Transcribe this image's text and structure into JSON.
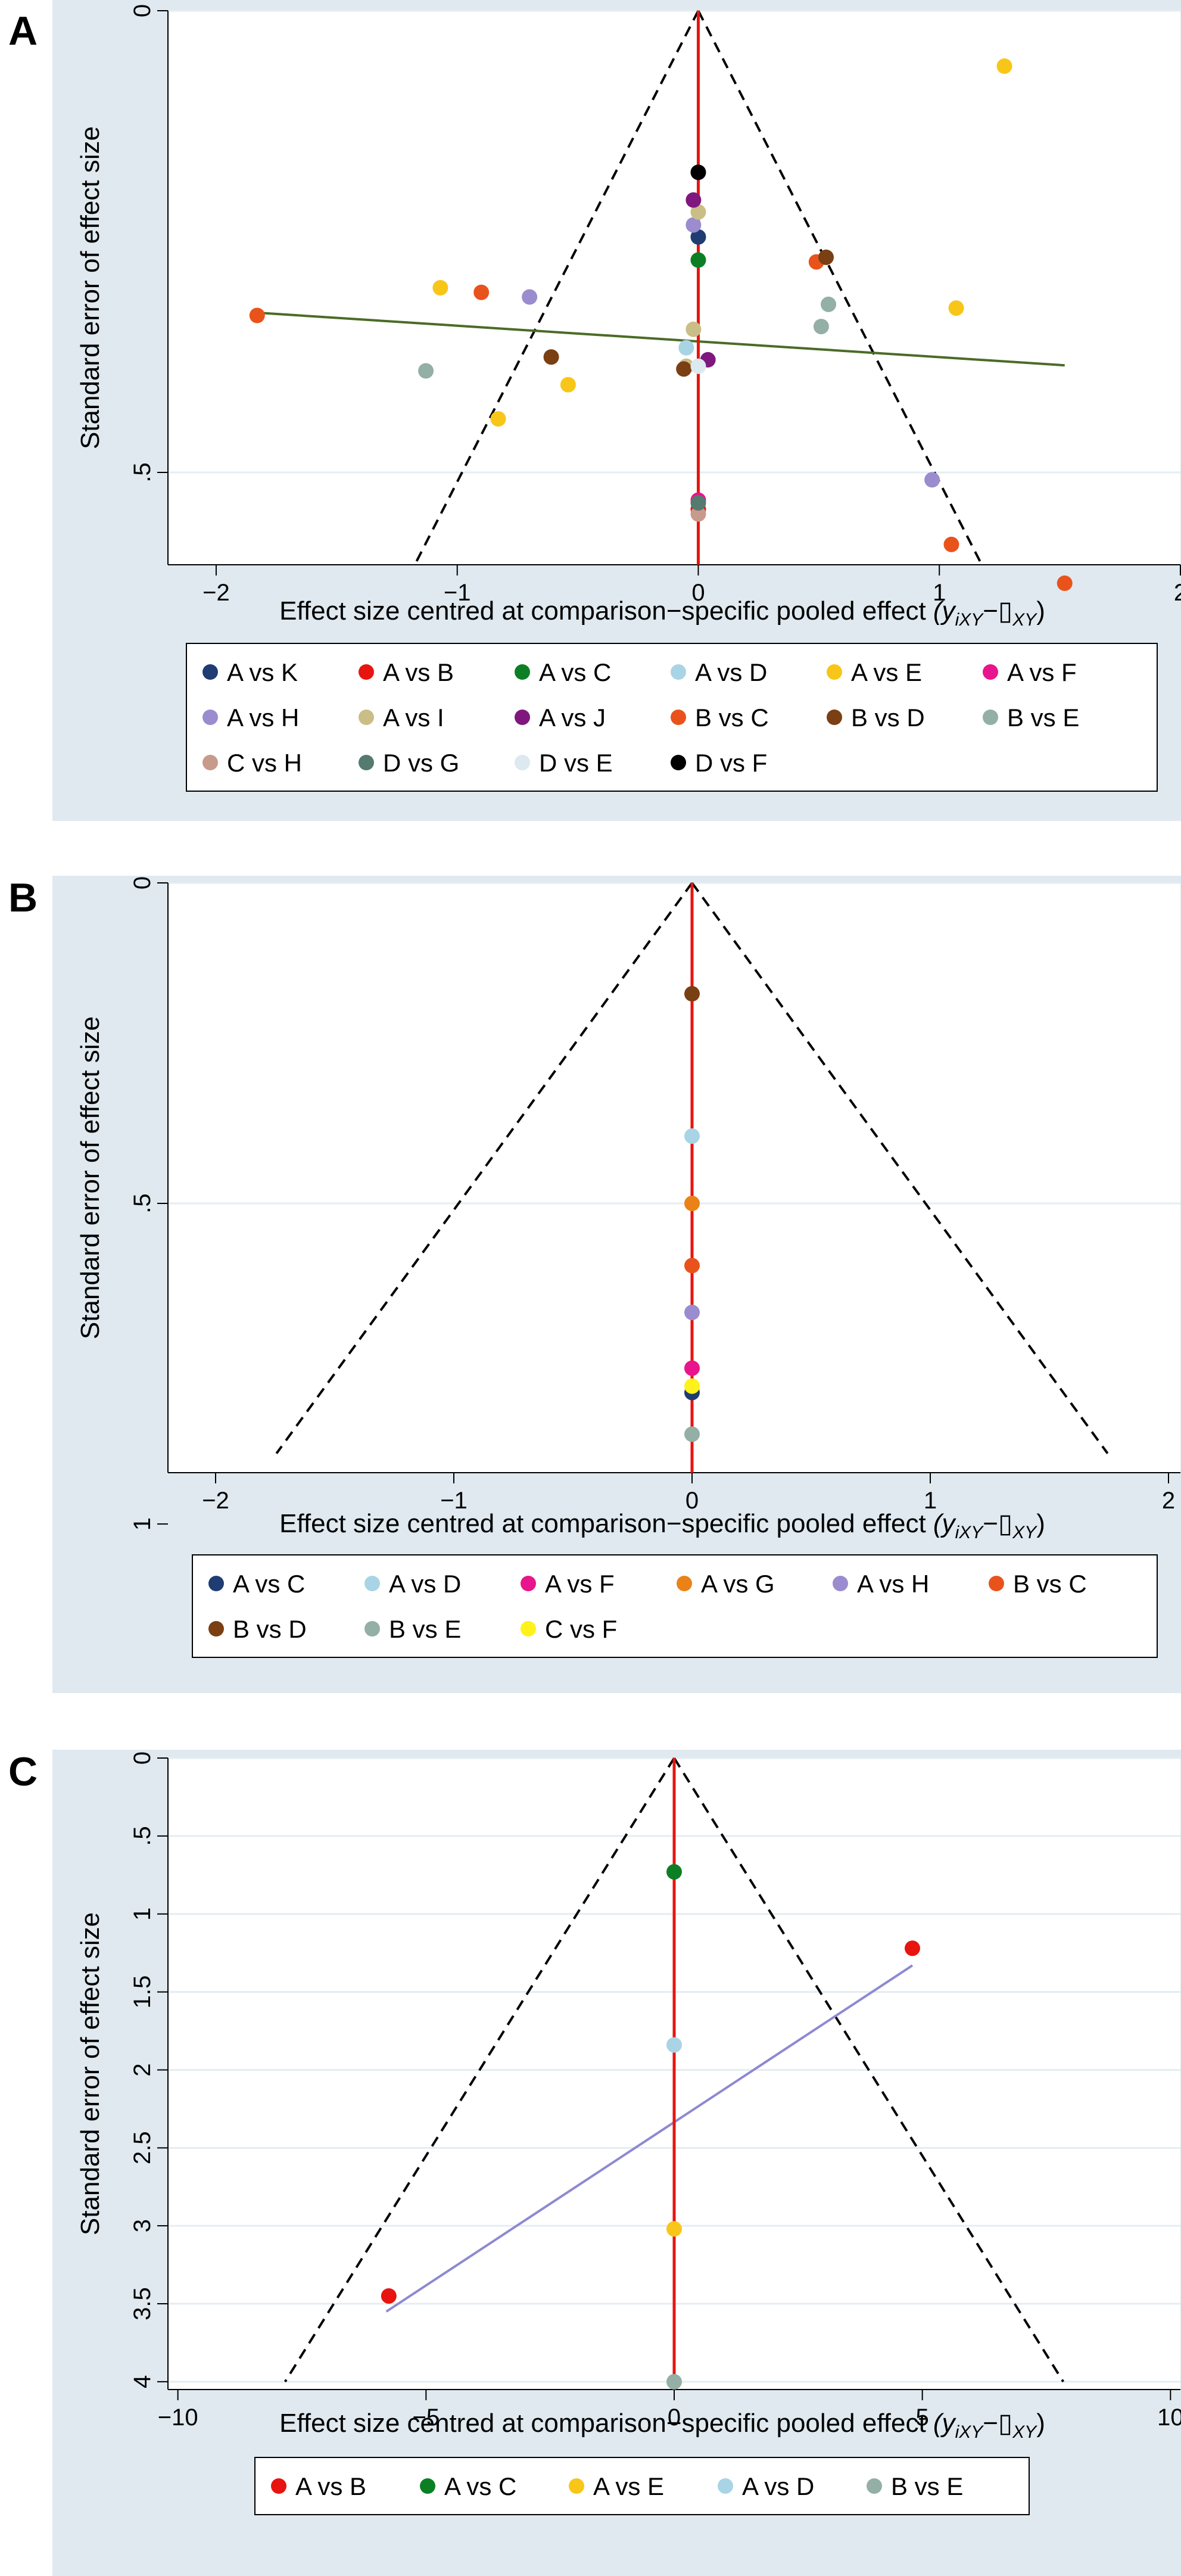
{
  "panels": [
    {
      "letter": "A"
    },
    {
      "letter": "B"
    },
    {
      "letter": "C"
    }
  ],
  "colors": {
    "background": "#dfe9ef",
    "plot_bg": "#ffffff",
    "gridline": "#e4edf2",
    "null_line": "#e8140f",
    "funnel": "#000000"
  },
  "chart_data": [
    {
      "type": "scatter",
      "title": "",
      "xlabel": "Effect size centred at comparison−specific pooled effect",
      "xlabel_math": "(y",
      "xlabel_sub": "iXY",
      "xlabel_dash": "−",
      "xlabel_box": "▯",
      "xlabel_sub2": "XY",
      "xlabel_close": ")",
      "ylabel": "Standard error of effect size",
      "xlim": [
        -2.2,
        2.0
      ],
      "ylim": [
        0,
        0.6
      ],
      "xticks": [
        -2,
        -1,
        0,
        1,
        2
      ],
      "xtick_labels": [
        "−2",
        "−1",
        "0",
        "1",
        "2"
      ],
      "yticks": [
        0,
        0.5
      ],
      "ytick_labels": [
        "0",
        ".5"
      ],
      "funnel": {
        "apex_se": 0,
        "max_se": 0.6,
        "slope": 1.96
      },
      "regression_line": {
        "x": [
          -1.83,
          1.52
        ],
        "y": [
          0.327,
          0.384
        ],
        "color": "#4b6b26"
      },
      "series": [
        {
          "name": "A vs K",
          "color": "#1f3c73",
          "x": [
            0.0
          ],
          "y": [
            0.245
          ]
        },
        {
          "name": "A vs B",
          "color": "#e8140f",
          "x": [
            0.0
          ],
          "y": [
            0.54
          ]
        },
        {
          "name": "A vs C",
          "color": "#0c7f24",
          "x": [
            0.0
          ],
          "y": [
            0.27
          ]
        },
        {
          "name": "A vs D",
          "color": "#a8d4e5",
          "x": [
            -0.05
          ],
          "y": [
            0.365
          ]
        },
        {
          "name": "A vs E",
          "color": "#f8c618",
          "x": [
            1.27,
            -1.07,
            1.07,
            -0.83,
            -0.54
          ],
          "y": [
            0.06,
            0.3,
            0.322,
            0.442,
            0.405
          ]
        },
        {
          "name": "A vs F",
          "color": "#e8158c",
          "x": [
            0.0
          ],
          "y": [
            0.53
          ]
        },
        {
          "name": "A vs H",
          "color": "#9a8ccf",
          "x": [
            -0.02,
            -0.7,
            0.97
          ],
          "y": [
            0.232,
            0.31,
            0.508
          ]
        },
        {
          "name": "A vs I",
          "color": "#cbbd86",
          "x": [
            0.0,
            -0.02,
            -0.05
          ],
          "y": [
            0.218,
            0.345,
            0.385
          ]
        },
        {
          "name": "A vs J",
          "color": "#7f177f",
          "x": [
            -0.02,
            0.04
          ],
          "y": [
            0.205,
            0.378
          ]
        },
        {
          "name": "B vs C",
          "color": "#e9531b",
          "x": [
            -1.83,
            -0.9,
            0.49,
            1.05,
            1.52
          ],
          "y": [
            0.33,
            0.305,
            0.272,
            0.578,
            0.62
          ]
        },
        {
          "name": "B vs D",
          "color": "#7a3f12",
          "x": [
            0.53,
            -0.61,
            -0.06
          ],
          "y": [
            0.267,
            0.375,
            0.388
          ]
        },
        {
          "name": "B vs E",
          "color": "#93afa6",
          "x": [
            -1.13,
            0.51,
            0.54
          ],
          "y": [
            0.39,
            0.342,
            0.318
          ]
        },
        {
          "name": "C vs H",
          "color": "#c89a8c",
          "x": [
            0.0
          ],
          "y": [
            0.545
          ]
        },
        {
          "name": "D vs G",
          "color": "#557a70",
          "x": [
            0.0
          ],
          "y": [
            0.533
          ]
        },
        {
          "name": "D vs E",
          "color": "#dce9ee",
          "x": [
            0.0
          ],
          "y": [
            0.385
          ]
        },
        {
          "name": "D vs F",
          "color": "#000000",
          "x": [
            0.0
          ],
          "y": [
            0.175
          ]
        }
      ]
    },
    {
      "type": "scatter",
      "title": "",
      "xlabel": "Effect size centred at comparison−specific pooled effect",
      "xlabel_math": "(y",
      "xlabel_sub": "iXY",
      "xlabel_dash": "−",
      "xlabel_box": "▯",
      "xlabel_sub2": "XY",
      "xlabel_close": ")",
      "ylabel": "Standard error of effect size",
      "xlim": [
        -2.2,
        2.05
      ],
      "ylim": [
        0,
        0.92
      ],
      "xticks": [
        -2,
        -1,
        0,
        1,
        2
      ],
      "xtick_labels": [
        "−2",
        "−1",
        "0",
        "1",
        "2"
      ],
      "yticks": [
        0,
        0.5,
        1
      ],
      "ytick_labels": [
        "0",
        ".5",
        "1"
      ],
      "funnel": {
        "apex_se": 0,
        "max_se": 0.89,
        "slope": 1.96
      },
      "series": [
        {
          "name": "A vs C",
          "color": "#1f3c73",
          "x": [
            0.0
          ],
          "y": [
            0.795
          ]
        },
        {
          "name": "A vs D",
          "color": "#a8d4e5",
          "x": [
            0.0
          ],
          "y": [
            0.395
          ]
        },
        {
          "name": "A vs F",
          "color": "#e8158c",
          "x": [
            0.0
          ],
          "y": [
            0.757
          ]
        },
        {
          "name": "A vs G",
          "color": "#ea8217",
          "x": [
            0.0
          ],
          "y": [
            0.5
          ]
        },
        {
          "name": "A vs H",
          "color": "#9a8ccf",
          "x": [
            0.0
          ],
          "y": [
            0.67
          ]
        },
        {
          "name": "B vs C",
          "color": "#e9531b",
          "x": [
            0.0
          ],
          "y": [
            0.597
          ]
        },
        {
          "name": "B vs D",
          "color": "#7a3f12",
          "x": [
            0.0
          ],
          "y": [
            0.173
          ]
        },
        {
          "name": "B vs E",
          "color": "#93afa6",
          "x": [
            0.0
          ],
          "y": [
            0.86
          ]
        },
        {
          "name": "C vs F",
          "color": "#fff21a",
          "x": [
            0.0
          ],
          "y": [
            0.785
          ]
        }
      ]
    },
    {
      "type": "scatter",
      "title": "",
      "xlabel": "Effect size centred at comparison−specific pooled effect",
      "xlabel_math": "(y",
      "xlabel_sub": "iXY",
      "xlabel_dash": "−",
      "xlabel_box": "▯",
      "xlabel_sub2": "XY",
      "xlabel_close": ")",
      "ylabel": "Standard error of effect size",
      "xlim": [
        -10.2,
        10.2
      ],
      "ylim": [
        0,
        4.05
      ],
      "xticks": [
        -10,
        -5,
        0,
        5,
        10
      ],
      "xtick_labels": [
        "−10",
        "−5",
        "0",
        "5",
        "10"
      ],
      "yticks": [
        0,
        0.5,
        1,
        1.5,
        2,
        2.5,
        3,
        3.5,
        4
      ],
      "ytick_labels": [
        "0",
        ".5",
        "1",
        "1.5",
        "2",
        "2.5",
        "3",
        "3.5",
        "4"
      ],
      "funnel": {
        "apex_se": 0,
        "max_se": 4.0,
        "slope": 1.96
      },
      "regression_line": {
        "x": [
          -5.8,
          4.8
        ],
        "y": [
          3.55,
          1.33
        ],
        "color": "#8d89d1"
      },
      "series": [
        {
          "name": "A vs B",
          "color": "#e8140f",
          "x": [
            -5.75,
            4.8
          ],
          "y": [
            3.45,
            1.22
          ]
        },
        {
          "name": "A vs C",
          "color": "#0c7f24",
          "x": [
            0.0
          ],
          "y": [
            0.73
          ]
        },
        {
          "name": "A vs E",
          "color": "#f8c618",
          "x": [
            0.0
          ],
          "y": [
            3.02
          ]
        },
        {
          "name": "A vs D",
          "color": "#a8d4e5",
          "x": [
            0.0
          ],
          "y": [
            1.84
          ]
        },
        {
          "name": "B vs E",
          "color": "#93afa6",
          "x": [
            0.0
          ],
          "y": [
            4.0
          ]
        }
      ]
    }
  ]
}
